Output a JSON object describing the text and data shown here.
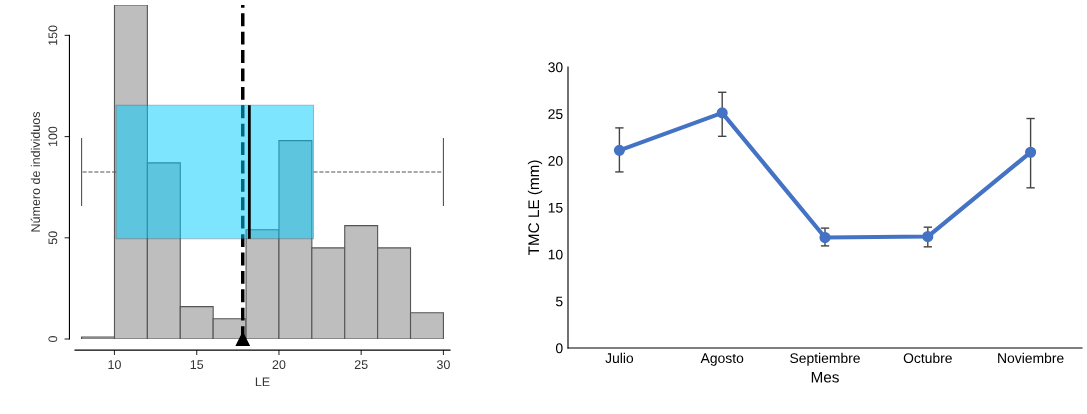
{
  "chart_data": [
    {
      "type": "histogram",
      "xlabel": "LE",
      "ylabel": "Número de individuos",
      "bins": [
        8,
        10,
        12,
        14,
        16,
        18,
        20,
        22,
        24,
        26,
        28,
        30
      ],
      "values": [
        1,
        165,
        87,
        16,
        10,
        54,
        98,
        45,
        56,
        45,
        13
      ],
      "color": "#bebebe",
      "xlim": [
        7.6,
        30.4
      ],
      "ylim": [
        0,
        165
      ],
      "xticks": [
        10,
        15,
        20,
        25,
        30
      ],
      "yticks": [
        0,
        50,
        100,
        150
      ],
      "grid": false,
      "ref_lines": [
        {
          "axis": "x",
          "value": 17.8,
          "line_style": "dashed",
          "color": "#000000"
        }
      ]
    },
    {
      "type": "box",
      "orientation": "horizontal",
      "categories": [
        null
      ],
      "color": "#00ccff",
      "boxes": [
        {
          "low": 8,
          "q1": 10.1,
          "median": 18.2,
          "q3": 22.1,
          "high": 30
        }
      ],
      "xlim": [
        7.6,
        30.4
      ],
      "tick_labels": false
    },
    {
      "type": "line",
      "xlabel": "Mes",
      "ylabel": "TMC LE (mm)",
      "categories": [
        "Julio",
        "Agosto",
        "Septiembre",
        "Octubre",
        "Noviembre"
      ],
      "series": [
        {
          "color": "#4472c4",
          "values": [
            21.1,
            25.1,
            11.8,
            11.9,
            20.9
          ],
          "errors": [
            [
              18.8,
              23.5
            ],
            [
              22.6,
              27.3
            ],
            [
              10.9,
              12.8
            ],
            [
              10.8,
              12.9
            ],
            [
              17.1,
              24.5
            ]
          ]
        }
      ],
      "ylim": [
        0,
        30
      ],
      "yticks": [
        0,
        5,
        10,
        15,
        20,
        25,
        30
      ],
      "marker": "circle",
      "line_style": "solid",
      "grid": false
    }
  ]
}
